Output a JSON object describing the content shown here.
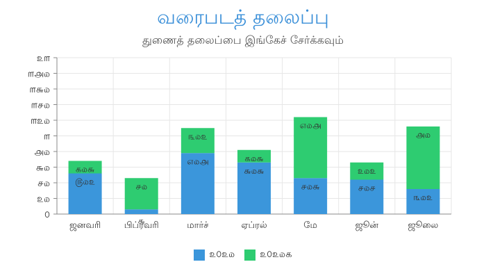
{
  "chart_data": {
    "type": "bar",
    "stacked": true,
    "title": "வரைபடத் தலைப்பு",
    "subtitle": "துணைத் தலைப்பை இங்கேச் சேர்க்கவும்",
    "categories": [
      "ஜனவரி",
      "பிப்ரவரி",
      "மார்ச்",
      "ஏப்ரல்",
      "மே",
      "ஜூன்",
      "ஜூலை"
    ],
    "y_ticks": [
      "௦",
      "௨௰",
      "௪௰",
      "௬௰",
      "௮௰",
      "௱",
      "௱௨௰",
      "௱௪௰",
      "௱௬௰",
      "௱௮௰",
      "௨௱"
    ],
    "y_tick_values": [
      0,
      20,
      40,
      60,
      80,
      100,
      120,
      140,
      160,
      180,
      200
    ],
    "ylim": [
      0,
      200
    ],
    "grid": true,
    "legend_position": "bottom",
    "series": [
      {
        "name": "௨௦௨௰",
        "color": "#3b96db",
        "values": [
          52,
          6,
          78,
          66,
          46,
          44,
          32
        ],
        "labels": [
          "௫௰௨",
          "௬",
          "௭௰௮",
          "௬௰௬",
          "௪௰௬",
          "௪௰௪",
          "௩௰௨"
        ]
      },
      {
        "name": "௨௦௨௰௧",
        "color": "#2ecc71",
        "values": [
          16,
          40,
          32,
          16,
          78,
          22,
          80
        ],
        "labels": [
          "௧௰௬",
          "௪௰",
          "௩௰௨",
          "௧௰௬",
          "௭௰௮",
          "௨௰௨",
          "௮௰"
        ]
      }
    ]
  }
}
